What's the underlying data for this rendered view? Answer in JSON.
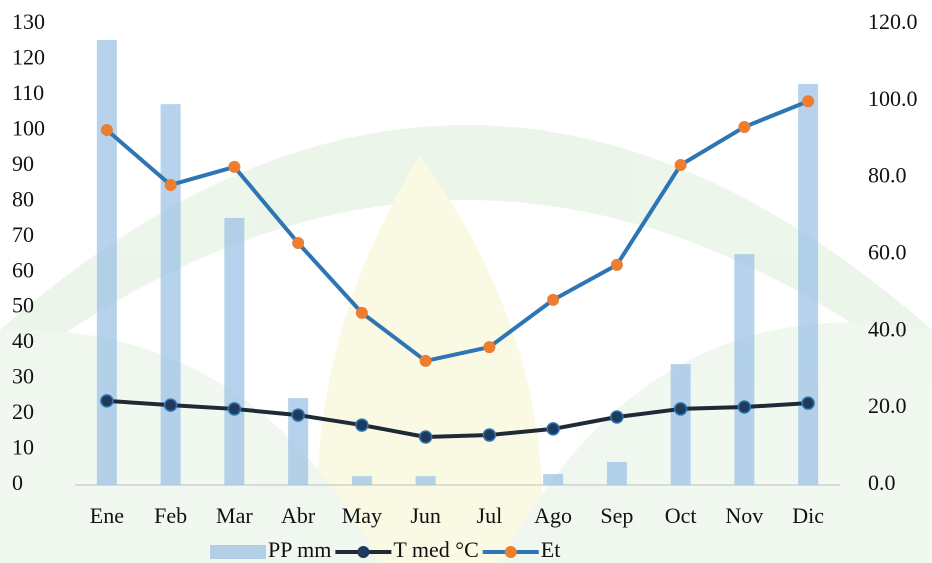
{
  "chart_data": {
    "type": "bar-line",
    "categories": [
      "Ene",
      "Feb",
      "Mar",
      "Abr",
      "May",
      "Jun",
      "Jul",
      "Ago",
      "Sep",
      "Oct",
      "Nov",
      "Dic"
    ],
    "series": [
      {
        "name": "PP mm",
        "type": "bar",
        "color": "#9dc3e6",
        "values": [
          125.5,
          107.4,
          75.3,
          24.5,
          2.5,
          2.5,
          0,
          3.1,
          6.5,
          34.1,
          65.1,
          113.1
        ]
      },
      {
        "name": "T med °C",
        "type": "line",
        "axis": "y2",
        "color": "#1f2a36",
        "marker": "#1f3a5a",
        "values": [
          21.9,
          20.8,
          19.8,
          18.2,
          15.6,
          12.5,
          13.0,
          14.6,
          17.7,
          19.8,
          20.3,
          21.3
        ]
      },
      {
        "name": "Et",
        "type": "line",
        "axis": "y2",
        "color": "#2e75b6",
        "marker": "#ed7d31",
        "values": [
          92.4,
          78.1,
          82.8,
          63.0,
          44.8,
          32.3,
          35.9,
          48.2,
          57.3,
          83.3,
          93.2,
          99.9
        ]
      }
    ],
    "ylim": [
      0,
      130
    ],
    "yticks": [
      0,
      10,
      20,
      30,
      40,
      50,
      60,
      70,
      80,
      90,
      100,
      110,
      120,
      130
    ],
    "y2lim": [
      0,
      120
    ],
    "y2ticks": [
      {
        "value": 0,
        "label": "0.0"
      },
      {
        "value": 20,
        "label": "20.0"
      },
      {
        "value": 40,
        "label": "40.0"
      },
      {
        "value": 60,
        "label": "60.0"
      },
      {
        "value": 80,
        "label": "80.0"
      },
      {
        "value": 100,
        "label": "100.0"
      },
      {
        "value": 120,
        "label": "120.0"
      }
    ],
    "legend": "bottom"
  }
}
